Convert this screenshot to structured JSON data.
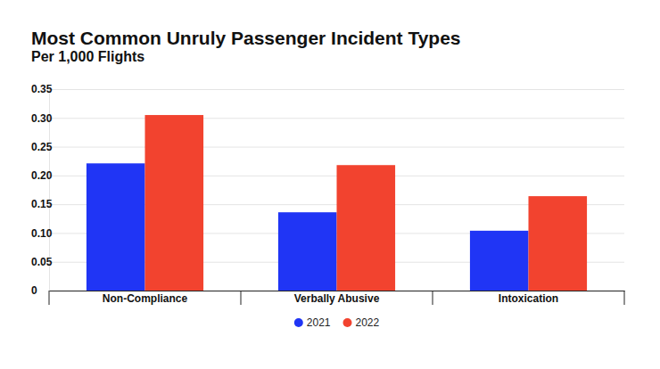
{
  "chart_data": {
    "type": "bar",
    "title": "Most Common Unruly Passenger Incident Types",
    "subtitle": "Per 1,000 Flights",
    "categories": [
      "Non-Compliance",
      "Verbally Abusive",
      "Intoxication"
    ],
    "series": [
      {
        "name": "2021",
        "color": "#2035f5",
        "values": [
          0.221,
          0.136,
          0.104
        ]
      },
      {
        "name": "2022",
        "color": "#f2432f",
        "values": [
          0.305,
          0.218,
          0.164
        ]
      }
    ],
    "ylim": [
      0,
      0.35
    ],
    "yticks": [
      0,
      0.05,
      {
        "value": 0.1,
        "label": "0.10"
      },
      0.15,
      {
        "value": 0.2,
        "label": "0.20"
      },
      0.25,
      {
        "value": 0.3,
        "label": "0.30"
      },
      0.35
    ],
    "grid": true,
    "legend": "bottom"
  }
}
